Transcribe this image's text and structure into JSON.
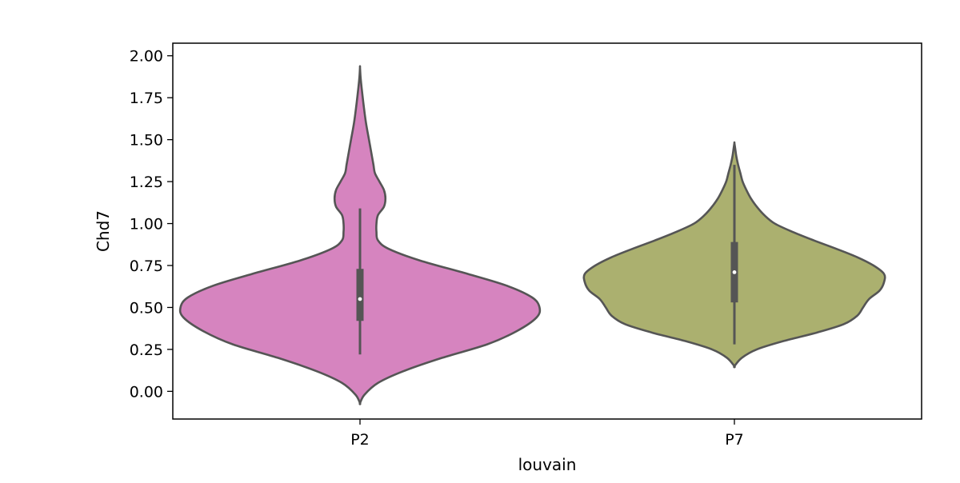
{
  "chart_data": {
    "type": "violin",
    "xlabel": "louvain",
    "ylabel": "Chd7",
    "categories": [
      "P2",
      "P7"
    ],
    "ylim": [
      -0.165,
      2.075
    ],
    "yticks": [
      0.0,
      0.25,
      0.5,
      0.75,
      1.0,
      1.25,
      1.5,
      1.75,
      2.0
    ],
    "ytick_labels": [
      "0.00",
      "0.25",
      "0.50",
      "0.75",
      "1.00",
      "1.25",
      "1.50",
      "1.75",
      "2.00"
    ],
    "grid": false,
    "legend": "none",
    "colors": {
      "P2": "#d684bf",
      "P7": "#abb06f",
      "outline": "#555555",
      "inner_box": "#555555",
      "median": "#ffffff"
    },
    "violins": [
      {
        "category": "P2",
        "color": "#d684bf",
        "density_y": [
          -0.07,
          -0.02,
          0.05,
          0.12,
          0.2,
          0.28,
          0.36,
          0.44,
          0.5,
          0.56,
          0.63,
          0.7,
          0.78,
          0.85,
          0.9,
          0.95,
          1.0,
          1.05,
          1.1,
          1.15,
          1.2,
          1.25,
          1.3,
          1.35,
          1.4,
          1.45,
          1.5,
          1.6,
          1.7,
          1.8,
          1.87,
          1.93
        ],
        "density_w": [
          0.0,
          0.03,
          0.12,
          0.29,
          0.55,
          0.85,
          1.05,
          1.18,
          1.2,
          1.15,
          0.98,
          0.72,
          0.4,
          0.19,
          0.12,
          0.11,
          0.11,
          0.12,
          0.16,
          0.17,
          0.16,
          0.13,
          0.1,
          0.09,
          0.08,
          0.07,
          0.06,
          0.04,
          0.025,
          0.012,
          0.004,
          0.0
        ],
        "whisker": [
          0.22,
          1.09
        ],
        "quartiles": [
          0.42,
          0.73
        ],
        "median": 0.55
      },
      {
        "category": "P7",
        "color": "#abb06f",
        "density_y": [
          0.15,
          0.2,
          0.25,
          0.3,
          0.35,
          0.4,
          0.45,
          0.5,
          0.55,
          0.6,
          0.65,
          0.7,
          0.75,
          0.8,
          0.85,
          0.9,
          0.95,
          1.0,
          1.05,
          1.1,
          1.15,
          1.2,
          1.25,
          1.3,
          1.35,
          1.4,
          1.45,
          1.48
        ],
        "density_w": [
          0.0,
          0.05,
          0.15,
          0.33,
          0.55,
          0.73,
          0.82,
          0.86,
          0.9,
          0.97,
          1.0,
          1.0,
          0.93,
          0.82,
          0.68,
          0.53,
          0.39,
          0.27,
          0.2,
          0.15,
          0.11,
          0.08,
          0.055,
          0.04,
          0.025,
          0.013,
          0.005,
          0.0
        ],
        "whisker": [
          0.28,
          1.35
        ],
        "quartiles": [
          0.53,
          0.89
        ],
        "median": 0.71
      }
    ]
  }
}
